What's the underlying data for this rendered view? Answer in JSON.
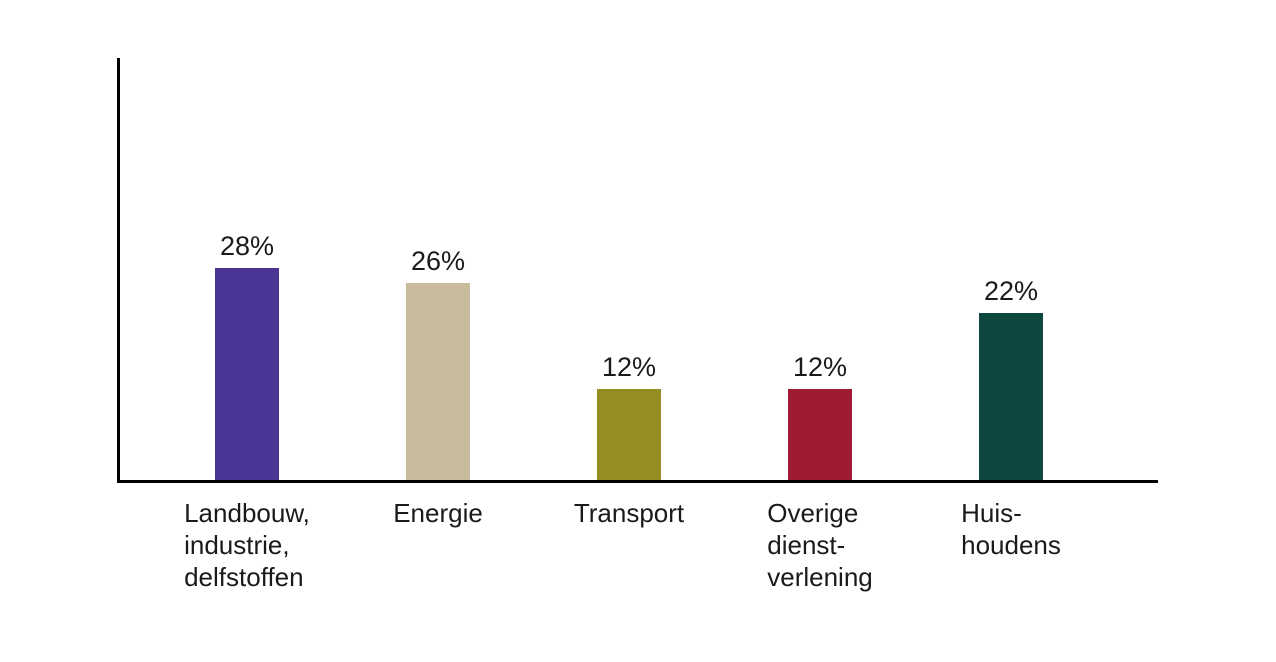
{
  "chart": {
    "background_color": "#ffffff",
    "axis_color": "#000000",
    "text_color": "#1a1a1a"
  },
  "chart_data": {
    "type": "bar",
    "title": "",
    "xlabel": "",
    "ylabel": "",
    "unit": "%",
    "ylim": [
      0,
      56
    ],
    "grid": false,
    "legend": false,
    "axes_shown": [
      "left",
      "bottom"
    ],
    "tick_labels_shown": false,
    "categories": [
      "Landbouw, industrie, delfstoffen",
      "Energie",
      "Transport",
      "Overige dienstverlening",
      "Huishoudens"
    ],
    "category_label_lines": [
      [
        "Landbouw,",
        "industrie,",
        "delfstoffen"
      ],
      [
        "Energie"
      ],
      [
        "Transport"
      ],
      [
        "Overige",
        "dienst-",
        "verlening"
      ],
      [
        "Huis-",
        "houdens"
      ]
    ],
    "values": [
      28,
      26,
      12,
      12,
      22
    ],
    "value_labels": [
      "28%",
      "26%",
      "12%",
      "12%",
      "22%"
    ],
    "bar_colors": [
      "#4a3494",
      "#c8bc9c",
      "#938d22",
      "#9e1b34",
      "#0e4740"
    ]
  }
}
